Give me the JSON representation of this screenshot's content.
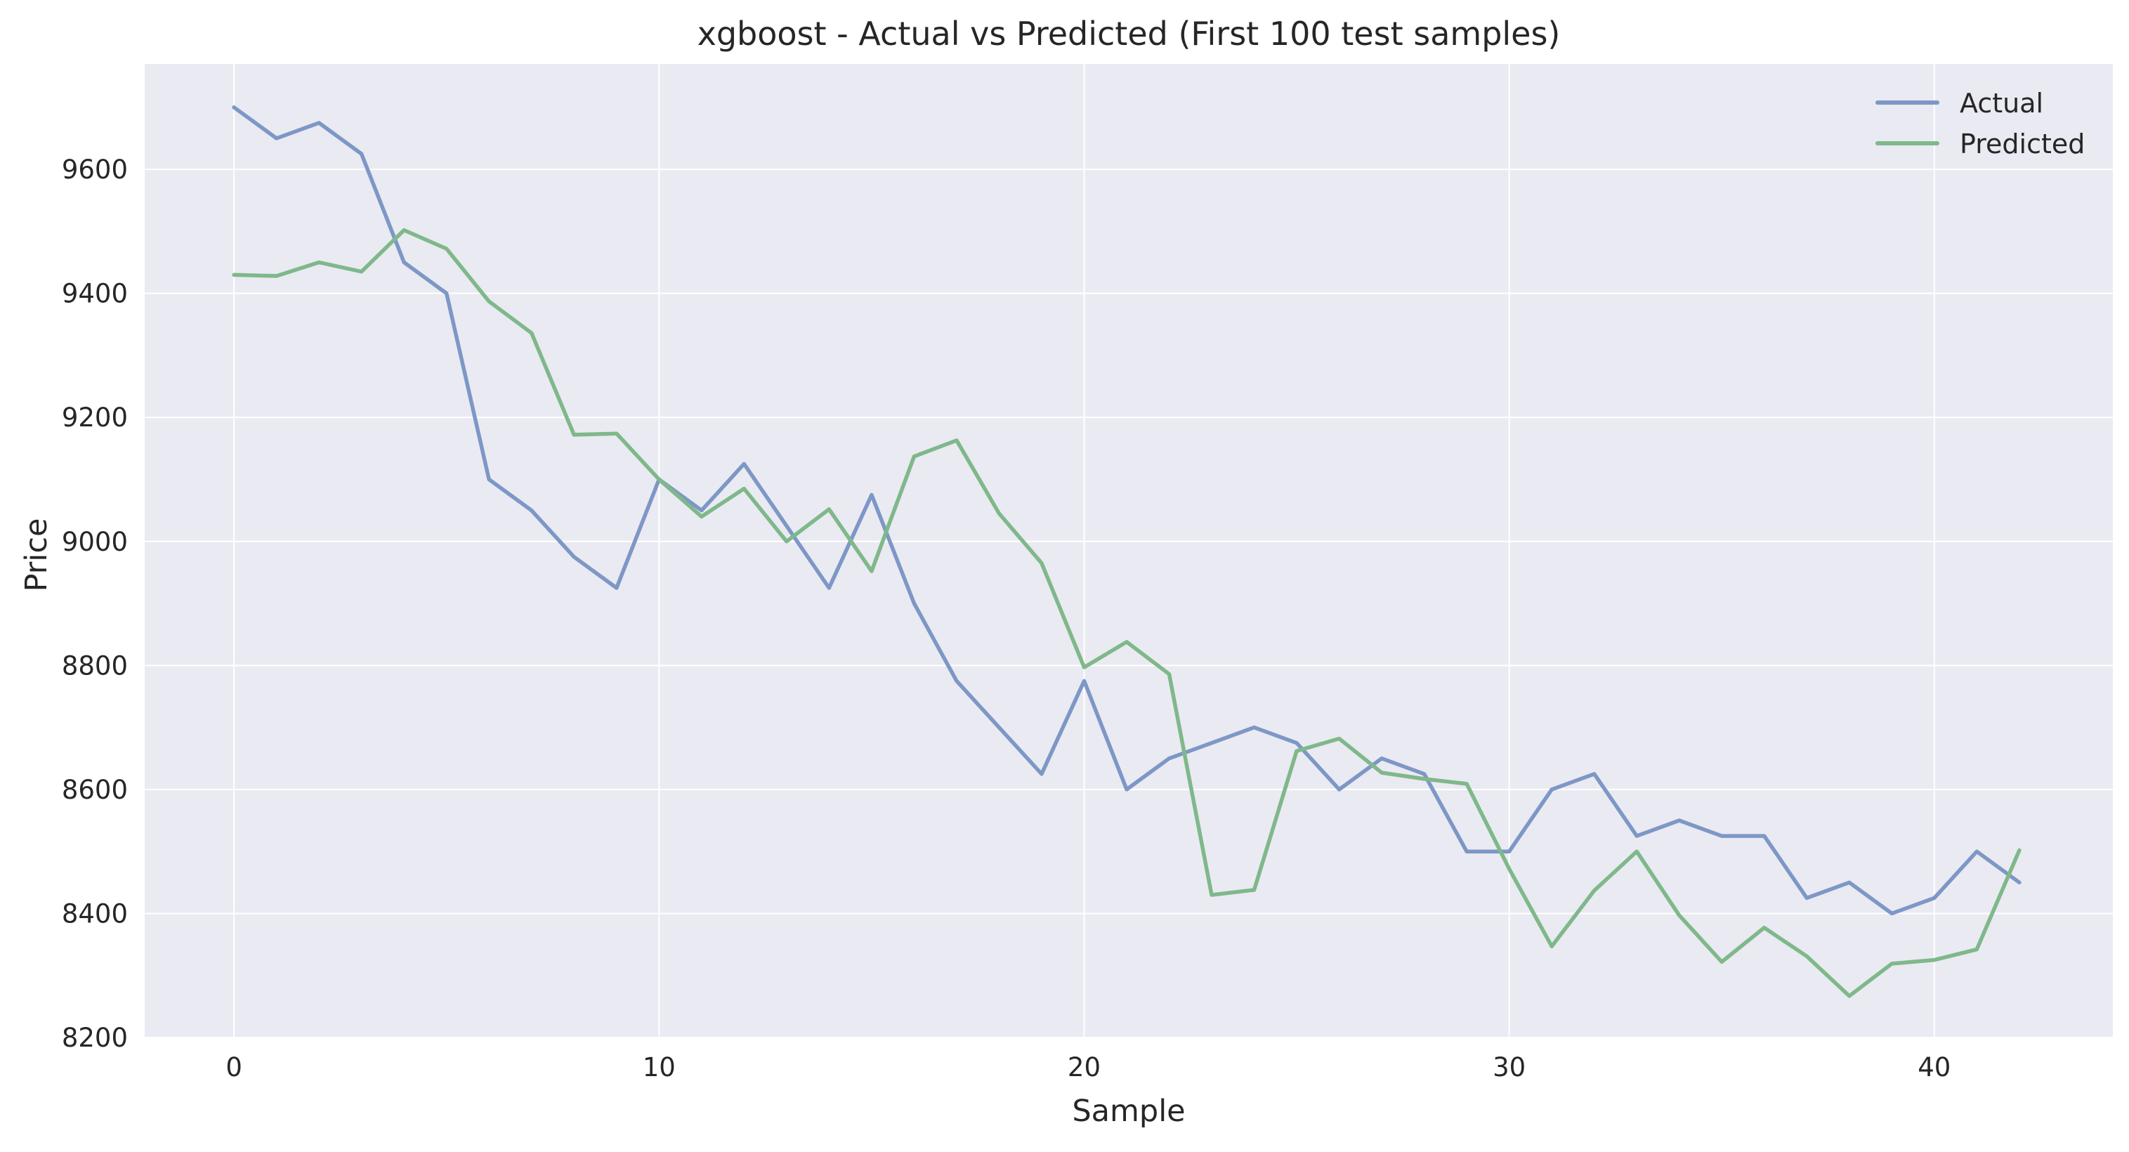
{
  "chart_data": {
    "type": "line",
    "title": "xgboost - Actual vs Predicted (First 100 test samples)",
    "xlabel": "Sample",
    "ylabel": "Price",
    "xlim": [
      -2.1,
      44.2
    ],
    "ylim": [
      8200,
      9770
    ],
    "x_ticks": [
      0,
      10,
      20,
      30,
      40
    ],
    "y_ticks": [
      8200,
      8400,
      8600,
      8800,
      9000,
      9200,
      9400,
      9600
    ],
    "x_tick_labels": [
      "0",
      "10",
      "20",
      "30",
      "40"
    ],
    "y_tick_labels": [
      "8200",
      "8400",
      "8600",
      "8800",
      "9000",
      "9200",
      "9400",
      "9600"
    ],
    "grid": true,
    "legend_position": "top-right",
    "colors": {
      "plot_background": "#eaeaf2",
      "grid": "#ffffff"
    },
    "x": [
      0,
      1,
      2,
      3,
      4,
      5,
      6,
      7,
      8,
      9,
      10,
      11,
      12,
      13,
      14,
      15,
      16,
      17,
      18,
      19,
      20,
      21,
      22,
      23,
      24,
      25,
      26,
      27,
      28,
      29,
      30,
      31,
      32,
      33,
      34,
      35,
      36,
      37,
      38,
      39,
      40,
      41,
      42
    ],
    "series": [
      {
        "name": "Actual",
        "color": "#7d97c6",
        "values": [
          9700,
          9650,
          9675,
          9625,
          9450,
          9400,
          9100,
          9050,
          8975,
          8925,
          9100,
          9050,
          9125,
          9025,
          8925,
          9075,
          8900,
          8775,
          8700,
          8625,
          8775,
          8600,
          8650,
          8675,
          8700,
          8675,
          8600,
          8650,
          8625,
          8500,
          8500,
          8600,
          8625,
          8525,
          8550,
          8525,
          8525,
          8425,
          8450,
          8400,
          8425,
          8500,
          8450
        ]
      },
      {
        "name": "Predicted",
        "color": "#7fb88a",
        "values": [
          9430,
          9428,
          9450,
          9435,
          9502,
          9472,
          9387,
          9336,
          9172,
          9174,
          9100,
          9040,
          9085,
          9000,
          9052,
          8952,
          9137,
          9163,
          9045,
          8965,
          8797,
          8838,
          8786,
          8430,
          8438,
          8662,
          8682,
          8627,
          8617,
          8609,
          8472,
          8347,
          8437,
          8500,
          8397,
          8322,
          8377,
          8331,
          8267,
          8319,
          8325,
          8342,
          8502
        ]
      }
    ]
  }
}
